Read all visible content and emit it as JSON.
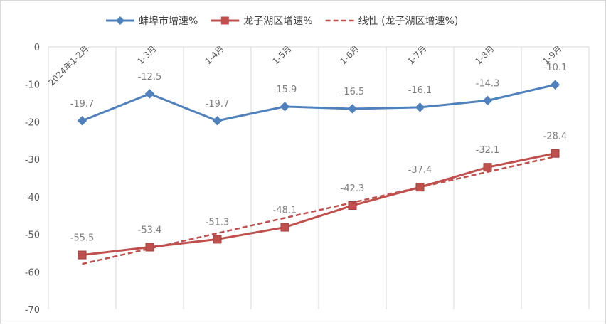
{
  "chart_data": {
    "type": "line",
    "title": "",
    "xlabel": "",
    "ylabel": "",
    "categories": [
      "2024年1-2月",
      "1-3月",
      "1-4月",
      "1-5月",
      "1-6月",
      "1-7月",
      "1-8月",
      "1-9月"
    ],
    "series": [
      {
        "name": "蚌埠市增速%",
        "color": "#4f81bd",
        "marker": "diamond",
        "values": [
          -19.7,
          -12.5,
          -19.7,
          -15.9,
          -16.5,
          -16.1,
          -14.3,
          -10.1
        ],
        "labels": [
          "-19.7",
          "-12.5",
          "-19.7",
          "-15.9",
          "-16.5",
          "-16.1",
          "-14.3",
          "-10.1"
        ]
      },
      {
        "name": "龙子湖区增速%",
        "color": "#c0504d",
        "marker": "square",
        "values": [
          -55.5,
          -53.4,
          -51.3,
          -48.1,
          -42.3,
          -37.4,
          -32.1,
          -28.4
        ],
        "labels": [
          "-55.5",
          "-53.4",
          "-51.3",
          "-48.1",
          "-42.3",
          "-37.4",
          "-32.1",
          "-28.4"
        ]
      }
    ],
    "trendline": {
      "name": "线性 (龙子湖区增速%)",
      "color": "#c0504d",
      "style": "dashed",
      "of_series": "龙子湖区增速%"
    },
    "ylim": [
      -70,
      0
    ],
    "yticks": [
      0,
      -10,
      -20,
      -30,
      -40,
      -50,
      -60,
      -70
    ],
    "ytick_labels": [
      "0",
      "-10",
      "-20",
      "-30",
      "-40",
      "-50",
      "-60",
      "-70"
    ],
    "grid": "vertical",
    "legend_position": "top"
  }
}
